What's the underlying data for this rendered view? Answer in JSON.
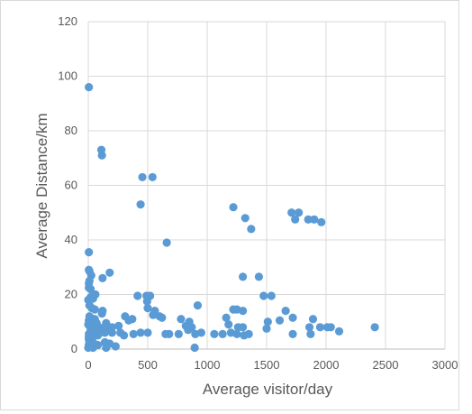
{
  "chart_data": {
    "type": "scatter",
    "xlabel": "Average visitor/day",
    "ylabel": "Average Distance/km",
    "xlim": [
      0,
      3000
    ],
    "ylim": [
      0,
      120
    ],
    "xticks": [
      0,
      500,
      1000,
      1500,
      2000,
      2500,
      3000
    ],
    "yticks": [
      0,
      20,
      40,
      60,
      80,
      100,
      120
    ],
    "grid": "vertical and horizontal gridlines",
    "legend": "none",
    "marker_color": "#5b9bd5",
    "points": [
      [
        5,
        96
      ],
      [
        110,
        73
      ],
      [
        115,
        71
      ],
      [
        455,
        63
      ],
      [
        540,
        63
      ],
      [
        440,
        53
      ],
      [
        660,
        39
      ],
      [
        5,
        35.5
      ],
      [
        5,
        29
      ],
      [
        10,
        28.5
      ],
      [
        180,
        28
      ],
      [
        25,
        27
      ],
      [
        120,
        26
      ],
      [
        10,
        25
      ],
      [
        5,
        24
      ],
      [
        5,
        22.5
      ],
      [
        20,
        22
      ],
      [
        60,
        20
      ],
      [
        20,
        19
      ],
      [
        40,
        18.5
      ],
      [
        0,
        18
      ],
      [
        10,
        16
      ],
      [
        30,
        15
      ],
      [
        55,
        14.5
      ],
      [
        120,
        14
      ],
      [
        115,
        13
      ],
      [
        10,
        12
      ],
      [
        20,
        11.5
      ],
      [
        55,
        11
      ],
      [
        5,
        10.5
      ],
      [
        35,
        10
      ],
      [
        70,
        9.5
      ],
      [
        150,
        9.5
      ],
      [
        0,
        9
      ],
      [
        10,
        8.5
      ],
      [
        30,
        8
      ],
      [
        90,
        8
      ],
      [
        200,
        8
      ],
      [
        255,
        8.5
      ],
      [
        120,
        7.5
      ],
      [
        180,
        7
      ],
      [
        20,
        7
      ],
      [
        60,
        6.5
      ],
      [
        100,
        6
      ],
      [
        140,
        6
      ],
      [
        200,
        6
      ],
      [
        270,
        6
      ],
      [
        5,
        5.5
      ],
      [
        40,
        5
      ],
      [
        80,
        5
      ],
      [
        300,
        5
      ],
      [
        5,
        4.5
      ],
      [
        5,
        4
      ],
      [
        5,
        3.5
      ],
      [
        30,
        3
      ],
      [
        10,
        2.5
      ],
      [
        40,
        2.5
      ],
      [
        140,
        2.5
      ],
      [
        180,
        2
      ],
      [
        80,
        1.5
      ],
      [
        5,
        1.5
      ],
      [
        20,
        1
      ],
      [
        40,
        0.5
      ],
      [
        0,
        0.5
      ],
      [
        230,
        1
      ],
      [
        150,
        0.5
      ],
      [
        415,
        19.5
      ],
      [
        490,
        19.5
      ],
      [
        520,
        19.5
      ],
      [
        495,
        17.5
      ],
      [
        500,
        15
      ],
      [
        560,
        14
      ],
      [
        545,
        12.5
      ],
      [
        310,
        12
      ],
      [
        370,
        11
      ],
      [
        340,
        10.5
      ],
      [
        600,
        12
      ],
      [
        620,
        11.5
      ],
      [
        500,
        6
      ],
      [
        440,
        6
      ],
      [
        380,
        5.5
      ],
      [
        650,
        5.5
      ],
      [
        680,
        5.5
      ],
      [
        760,
        5.5
      ],
      [
        900,
        5.5
      ],
      [
        950,
        6
      ],
      [
        920,
        16
      ],
      [
        850,
        10
      ],
      [
        820,
        8.5
      ],
      [
        780,
        11
      ],
      [
        870,
        8
      ],
      [
        840,
        7
      ],
      [
        895,
        0.5
      ],
      [
        1060,
        5.5
      ],
      [
        1130,
        5.5
      ],
      [
        1200,
        6
      ],
      [
        1250,
        5.5
      ],
      [
        1310,
        5
      ],
      [
        1350,
        5.5
      ],
      [
        1260,
        8
      ],
      [
        1300,
        8
      ],
      [
        1180,
        9
      ],
      [
        1160,
        11.5
      ],
      [
        1220,
        14.5
      ],
      [
        1250,
        14.5
      ],
      [
        1300,
        14
      ],
      [
        1220,
        52
      ],
      [
        1320,
        48
      ],
      [
        1370,
        44
      ],
      [
        1300,
        26.5
      ],
      [
        1435,
        26.5
      ],
      [
        1475,
        19.5
      ],
      [
        1540,
        19.5
      ],
      [
        1500,
        7.5
      ],
      [
        1510,
        10
      ],
      [
        1610,
        10.5
      ],
      [
        1660,
        14
      ],
      [
        1720,
        11.5
      ],
      [
        1720,
        5.5
      ],
      [
        1710,
        50
      ],
      [
        1740,
        47.5
      ],
      [
        1770,
        50
      ],
      [
        1850,
        47.5
      ],
      [
        1900,
        47.5
      ],
      [
        1960,
        46.5
      ],
      [
        1860,
        8
      ],
      [
        1870,
        5.5
      ],
      [
        1890,
        11
      ],
      [
        1950,
        8
      ],
      [
        2010,
        8
      ],
      [
        2040,
        8
      ],
      [
        2110,
        6.5
      ],
      [
        2410,
        8
      ]
    ]
  }
}
